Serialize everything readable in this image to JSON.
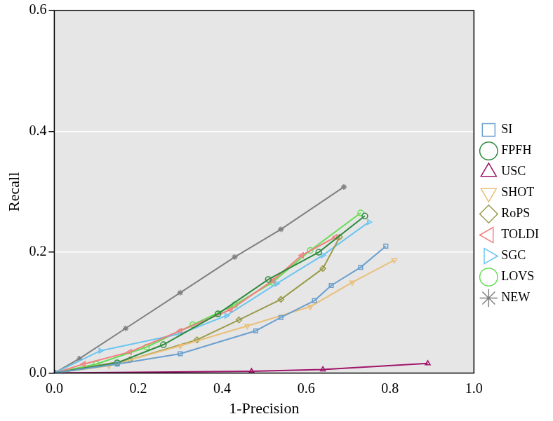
{
  "chart_data": {
    "type": "line",
    "x_label": "1-Precision",
    "y_label": "Recall",
    "xlim": [
      0,
      1
    ],
    "ylim": [
      0,
      0.6
    ],
    "xticks": [
      {
        "value": 0,
        "label": "0.0"
      },
      0.2,
      0.4,
      0.6,
      0.8,
      {
        "value": 1,
        "label": "1.0"
      }
    ],
    "yticks": [
      {
        "value": 0,
        "label": "0.0"
      },
      0.2,
      0.4,
      0.6
    ],
    "grid": true,
    "legend": "right",
    "series": [
      {
        "name": "SI",
        "color": "#6a9fcf",
        "marker": "square",
        "x": [
          0,
          0.15,
          0.3,
          0.48,
          0.54,
          0.62,
          0.66,
          0.73,
          0.79
        ],
        "values": [
          0,
          0.015,
          0.032,
          0.07,
          0.092,
          0.12,
          0.145,
          0.175,
          0.21
        ]
      },
      {
        "name": "FPFH",
        "color": "#2e8b3e",
        "marker": "circle",
        "x": [
          0,
          0.15,
          0.26,
          0.39,
          0.51,
          0.63,
          0.74
        ],
        "values": [
          0,
          0.017,
          0.047,
          0.098,
          0.155,
          0.2,
          0.26
        ]
      },
      {
        "name": "USC",
        "color": "#a0156b",
        "marker": "triangle-up",
        "x": [
          0,
          0.47,
          0.64,
          0.89
        ],
        "values": [
          0,
          0.003,
          0.006,
          0.016
        ]
      },
      {
        "name": "SHOT",
        "color": "#e8c07a",
        "marker": "triangle-down",
        "x": [
          0,
          0.13,
          0.3,
          0.46,
          0.61,
          0.71,
          0.81
        ],
        "values": [
          0,
          0.012,
          0.045,
          0.078,
          0.11,
          0.15,
          0.187
        ]
      },
      {
        "name": "RoPS",
        "color": "#9a9a4a",
        "marker": "diamond",
        "x": [
          0,
          0.18,
          0.34,
          0.44,
          0.54,
          0.64,
          0.68
        ],
        "values": [
          0,
          0.022,
          0.055,
          0.088,
          0.122,
          0.173,
          0.225
        ]
      },
      {
        "name": "TOLDI",
        "color": "#f08080",
        "marker": "triangle-left",
        "x": [
          0,
          0.07,
          0.18,
          0.3,
          0.42,
          0.52,
          0.59,
          0.67
        ],
        "values": [
          0,
          0.015,
          0.035,
          0.07,
          0.105,
          0.153,
          0.195,
          0.225
        ]
      },
      {
        "name": "SGC",
        "color": "#6cc5f0",
        "marker": "triangle-right",
        "x": [
          0,
          0.11,
          0.3,
          0.41,
          0.53,
          0.64,
          0.75
        ],
        "values": [
          0,
          0.037,
          0.065,
          0.095,
          0.148,
          0.195,
          0.25
        ]
      },
      {
        "name": "LOVS",
        "color": "#66dd55",
        "marker": "circle",
        "x": [
          0,
          0.1,
          0.22,
          0.33,
          0.43,
          0.52,
          0.61,
          0.73
        ],
        "values": [
          0,
          0.015,
          0.043,
          0.08,
          0.113,
          0.15,
          0.203,
          0.265
        ]
      },
      {
        "name": "NEW",
        "color": "#808080",
        "marker": "star",
        "x": [
          0,
          0.06,
          0.17,
          0.3,
          0.43,
          0.54,
          0.69
        ],
        "values": [
          0,
          0.024,
          0.074,
          0.133,
          0.192,
          0.238,
          0.308
        ]
      }
    ]
  }
}
